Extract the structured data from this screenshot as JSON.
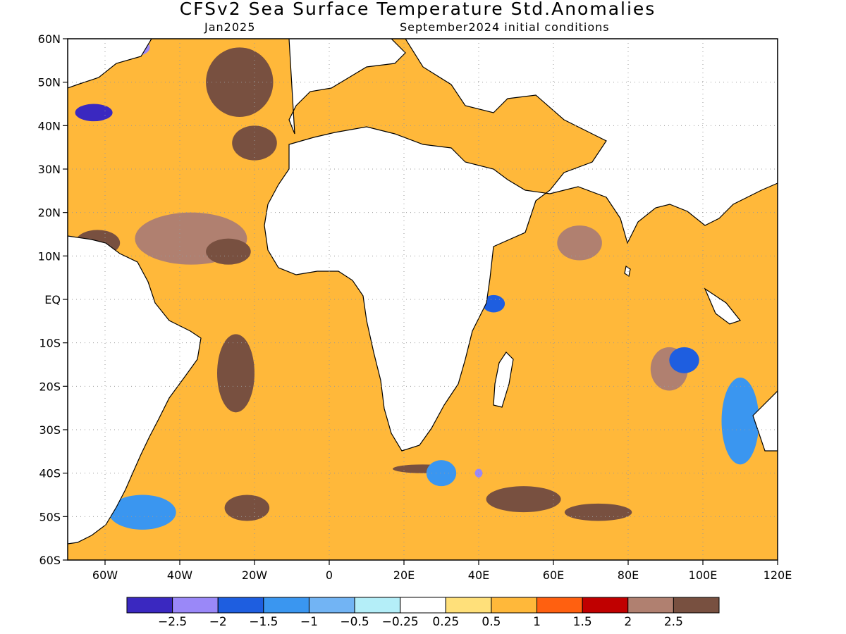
{
  "header": {
    "title": "CFSv2 Sea Surface Temperature Std.Anomalies",
    "valid_month": "Jan2025",
    "init_label": "September2024 initial conditions"
  },
  "map": {
    "lon_range": [
      -70,
      120
    ],
    "lat_range": [
      -60,
      60
    ],
    "x_ticks": [
      {
        "lon": -60,
        "label": "60W"
      },
      {
        "lon": -40,
        "label": "40W"
      },
      {
        "lon": -20,
        "label": "20W"
      },
      {
        "lon": 0,
        "label": "0"
      },
      {
        "lon": 20,
        "label": "20E"
      },
      {
        "lon": 40,
        "label": "40E"
      },
      {
        "lon": 60,
        "label": "60E"
      },
      {
        "lon": 80,
        "label": "80E"
      },
      {
        "lon": 100,
        "label": "100E"
      },
      {
        "lon": 120,
        "label": "120E"
      }
    ],
    "y_ticks": [
      {
        "lat": 60,
        "label": "60N"
      },
      {
        "lat": 50,
        "label": "50N"
      },
      {
        "lat": 40,
        "label": "40N"
      },
      {
        "lat": 30,
        "label": "30N"
      },
      {
        "lat": 20,
        "label": "20N"
      },
      {
        "lat": 10,
        "label": "10N"
      },
      {
        "lat": 0,
        "label": "EQ"
      },
      {
        "lat": -10,
        "label": "10S"
      },
      {
        "lat": -20,
        "label": "20S"
      },
      {
        "lat": -30,
        "label": "30S"
      },
      {
        "lat": -40,
        "label": "40S"
      },
      {
        "lat": -50,
        "label": "50S"
      },
      {
        "lat": -60,
        "label": "60S"
      }
    ],
    "grid": "dotted",
    "ocean_background_class": "0.5 to 1"
  },
  "colorbar": {
    "colors": [
      "#3a28c0",
      "#9a88f8",
      "#1e5ee0",
      "#3a96f0",
      "#72b4f4",
      "#b4eef8",
      "#ffffff",
      "#ffe07a",
      "#ffb83a",
      "#ff6010",
      "#c00000",
      "#b08070",
      "#785040"
    ],
    "labels": [
      "−2.5",
      "−2",
      "−1.5",
      "−1",
      "−0.5",
      "−0.25",
      "0.25",
      "0.5",
      "1",
      "1.5",
      "2",
      "2.5"
    ]
  },
  "anomaly_regions": [
    {
      "lon": -37,
      "lat": 14,
      "rx": 15,
      "ry": 6,
      "category": "2"
    },
    {
      "lon": -27,
      "lat": 11,
      "rx": 6,
      "ry": 3,
      "category": "2.5"
    },
    {
      "lon": -24,
      "lat": 50,
      "rx": 9,
      "ry": 8,
      "category": "2.5"
    },
    {
      "lon": -20,
      "lat": 36,
      "rx": 6,
      "ry": 4,
      "category": "2.5"
    },
    {
      "lon": -25,
      "lat": -17,
      "rx": 5,
      "ry": 9,
      "category": "2.5"
    },
    {
      "lon": 52,
      "lat": -46,
      "rx": 10,
      "ry": 3,
      "category": "2.5"
    },
    {
      "lon": 72,
      "lat": -49,
      "rx": 9,
      "ry": 2,
      "category": "2.5"
    },
    {
      "lon": -22,
      "lat": -48,
      "rx": 6,
      "ry": 3,
      "category": "2.5"
    },
    {
      "lon": 25,
      "lat": -39,
      "rx": 8,
      "ry": 1,
      "category": "2.5"
    },
    {
      "lon": 91,
      "lat": -16,
      "rx": 5,
      "ry": 5,
      "category": "2"
    },
    {
      "lon": 67,
      "lat": 13,
      "rx": 6,
      "ry": 4,
      "category": "2"
    },
    {
      "lon": -62,
      "lat": 13,
      "rx": 6,
      "ry": 3,
      "category": "2.5"
    },
    {
      "lon": -63,
      "lat": 43,
      "rx": 5,
      "ry": 2,
      "category": "-2.5"
    },
    {
      "lon": -52,
      "lat": 58,
      "rx": 4,
      "ry": 2,
      "category": "-2"
    },
    {
      "lon": 95,
      "lat": -14,
      "rx": 4,
      "ry": 3,
      "category": "-1.5"
    },
    {
      "lon": 44,
      "lat": -1,
      "rx": 3,
      "ry": 2,
      "category": "-1.5"
    },
    {
      "lon": -50,
      "lat": -49,
      "rx": 9,
      "ry": 4,
      "category": "-1"
    },
    {
      "lon": 110,
      "lat": -28,
      "rx": 5,
      "ry": 10,
      "category": "-1"
    },
    {
      "lon": 30,
      "lat": -40,
      "rx": 4,
      "ry": 3,
      "category": "-1"
    },
    {
      "lon": 40,
      "lat": -40,
      "rx": 1,
      "ry": 1,
      "category": "-2"
    }
  ]
}
